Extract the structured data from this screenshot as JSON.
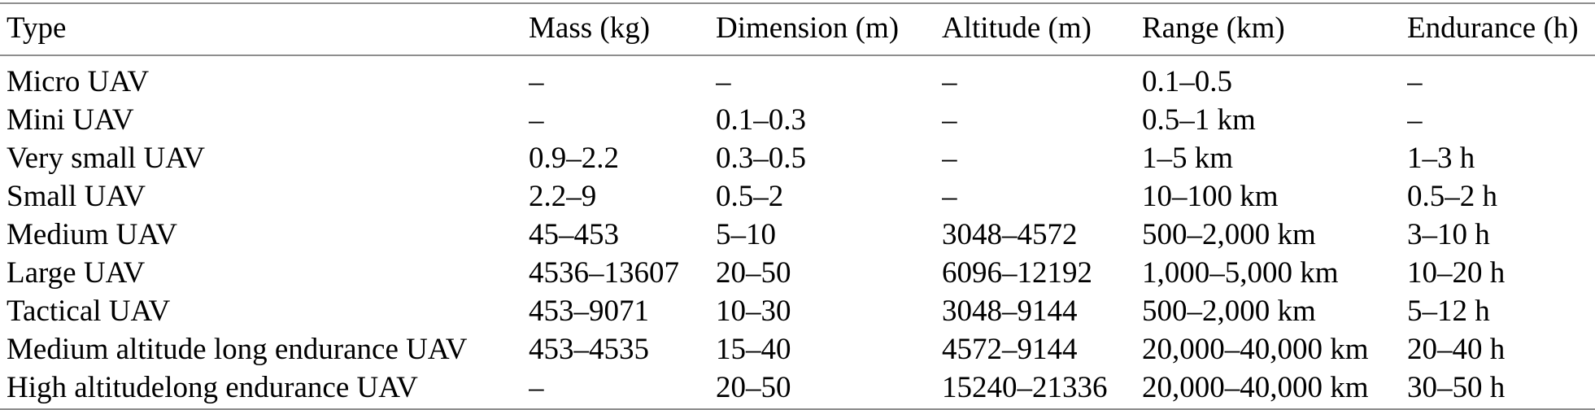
{
  "table": {
    "name": "uav-classification-table",
    "rule_color": "#8e8e8e",
    "text_color": "#000000",
    "columns": [
      "Type",
      "Mass (kg)",
      "Dimension (m)",
      "Altitude (m)",
      "Range (km)",
      "Endurance (h)"
    ],
    "rows": [
      [
        "Micro UAV",
        "–",
        "–",
        "–",
        "0.1–0.5",
        "–"
      ],
      [
        "Mini UAV",
        "–",
        "0.1–0.3",
        "–",
        "0.5–1 km",
        "–"
      ],
      [
        "Very small UAV",
        "0.9–2.2",
        "0.3–0.5",
        "–",
        "1–5 km",
        "1–3 h"
      ],
      [
        "Small UAV",
        "2.2–9",
        "0.5–2",
        "–",
        "10–100 km",
        "0.5–2 h"
      ],
      [
        "Medium UAV",
        "45–453",
        "5–10",
        "3048–4572",
        "500–2,000 km",
        "3–10 h"
      ],
      [
        "Large UAV",
        "4536–13607",
        "20–50",
        "6096–12192",
        "1,000–5,000 km",
        "10–20 h"
      ],
      [
        "Tactical UAV",
        "453–9071",
        "10–30",
        "3048–9144",
        "500–2,000 km",
        "5–12 h"
      ],
      [
        "Medium altitude long endurance UAV",
        "453–4535",
        "15–40",
        "4572–9144",
        "20,000–40,000 km",
        "20–40 h"
      ],
      [
        "High altitudelong endurance UAV",
        "–",
        "20–50",
        "15240–21336",
        "20,000–40,000 km",
        "30–50 h"
      ]
    ]
  },
  "chart_data": {
    "type": "table",
    "title": "",
    "columns": [
      "Type",
      "Mass (kg)",
      "Dimension (m)",
      "Altitude (m)",
      "Range (km)",
      "Endurance (h)"
    ],
    "rows": [
      [
        "Micro UAV",
        "–",
        "–",
        "–",
        "0.1–0.5",
        "–"
      ],
      [
        "Mini UAV",
        "–",
        "0.1–0.3",
        "–",
        "0.5–1 km",
        "–"
      ],
      [
        "Very small UAV",
        "0.9–2.2",
        "0.3–0.5",
        "–",
        "1–5 km",
        "1–3 h"
      ],
      [
        "Small UAV",
        "2.2–9",
        "0.5–2",
        "–",
        "10–100 km",
        "0.5–2 h"
      ],
      [
        "Medium UAV",
        "45–453",
        "5–10",
        "3048–4572",
        "500–2,000 km",
        "3–10 h"
      ],
      [
        "Large UAV",
        "4536–13607",
        "20–50",
        "6096–12192",
        "1,000–5,000 km",
        "10–20 h"
      ],
      [
        "Tactical UAV",
        "453–9071",
        "10–30",
        "3048–9144",
        "500–2,000 km",
        "5–12 h"
      ],
      [
        "Medium altitude long endurance UAV",
        "453–4535",
        "15–40",
        "4572–9144",
        "20,000–40,000 km",
        "20–40 h"
      ],
      [
        "High altitudelong endurance UAV",
        "–",
        "20–50",
        "15240–21336",
        "20,000–40,000 km",
        "30–50 h"
      ]
    ]
  }
}
